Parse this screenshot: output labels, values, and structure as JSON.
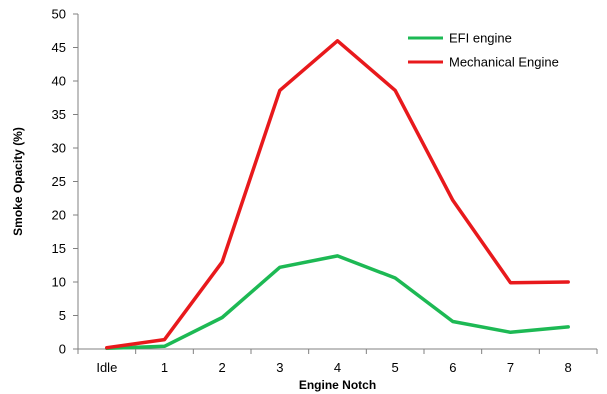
{
  "chart_data": {
    "type": "line",
    "xlabel": "Engine Notch",
    "ylabel": "Smoke Opacity (%)",
    "categories": [
      "Idle",
      "1",
      "2",
      "3",
      "4",
      "5",
      "6",
      "7",
      "8"
    ],
    "ylim": [
      0,
      50
    ],
    "yticks": [
      0,
      5,
      10,
      15,
      20,
      25,
      30,
      35,
      40,
      45,
      50
    ],
    "grid": false,
    "legend_position": "top-right",
    "series": [
      {
        "name": "EFI engine",
        "color": "#1db954",
        "values": [
          0.1,
          0.4,
          4.7,
          12.2,
          13.9,
          10.6,
          4.1,
          2.5,
          3.3
        ]
      },
      {
        "name": "Mechanical Engine",
        "color": "#e8191c",
        "values": [
          0.2,
          1.4,
          13.0,
          38.6,
          46.0,
          38.6,
          22.2,
          9.9,
          10.0
        ]
      }
    ]
  }
}
